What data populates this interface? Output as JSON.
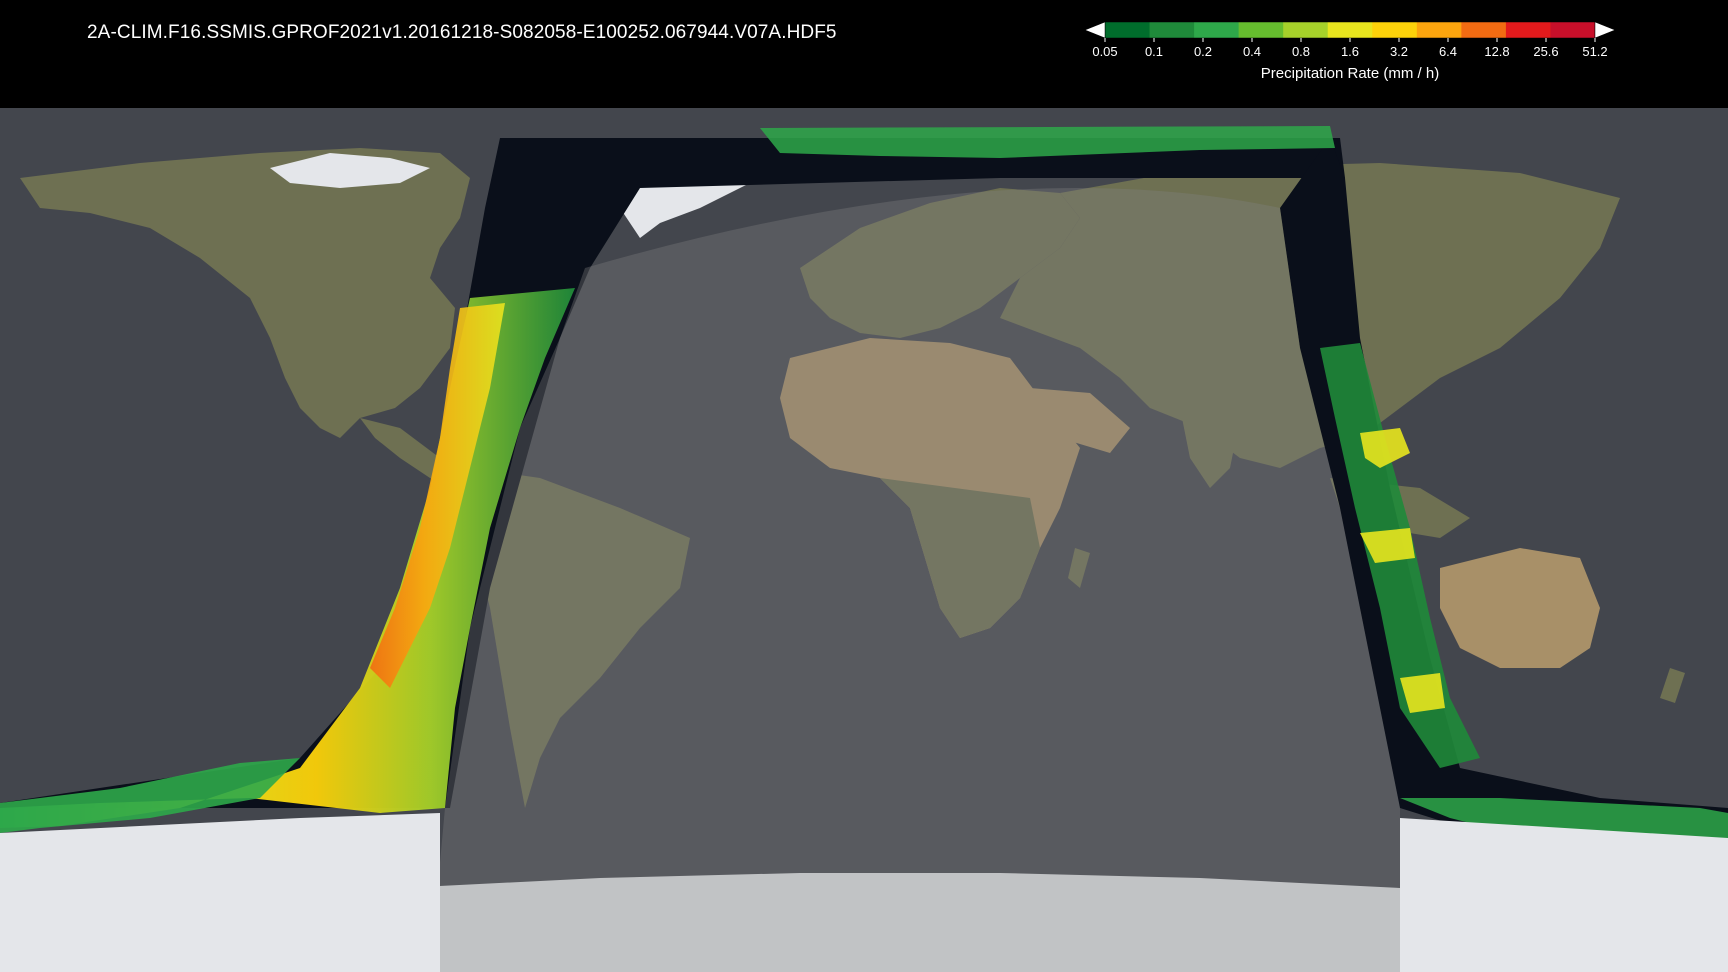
{
  "title": "2A-CLIM.F16.SSMIS.GPROF2021v1.20161218-S082058-E100252.067944.V07A.HDF5",
  "colorbar": {
    "label": "Precipitation Rate (mm / h)",
    "ticks": [
      "0.05",
      "0.1",
      "0.2",
      "0.4",
      "0.8",
      "1.6",
      "3.2",
      "6.4",
      "12.8",
      "25.6",
      "51.2"
    ],
    "colors": [
      "#006d2c",
      "#1f8a3a",
      "#2ea84a",
      "#66bd2e",
      "#a6d12a",
      "#e8e51e",
      "#fdd20a",
      "#fca50e",
      "#f26b12",
      "#e31a1c",
      "#c80f2a"
    ],
    "under_color": "#ffffff",
    "over_color": "#ffffff"
  },
  "map": {
    "ocean_color": "#43464d",
    "land_color": "#6e7052",
    "desert_color": "#a89068",
    "ice_color": "#e4e6ea",
    "swath_background": "#0a0f1a",
    "night_overlay": "#808080"
  }
}
